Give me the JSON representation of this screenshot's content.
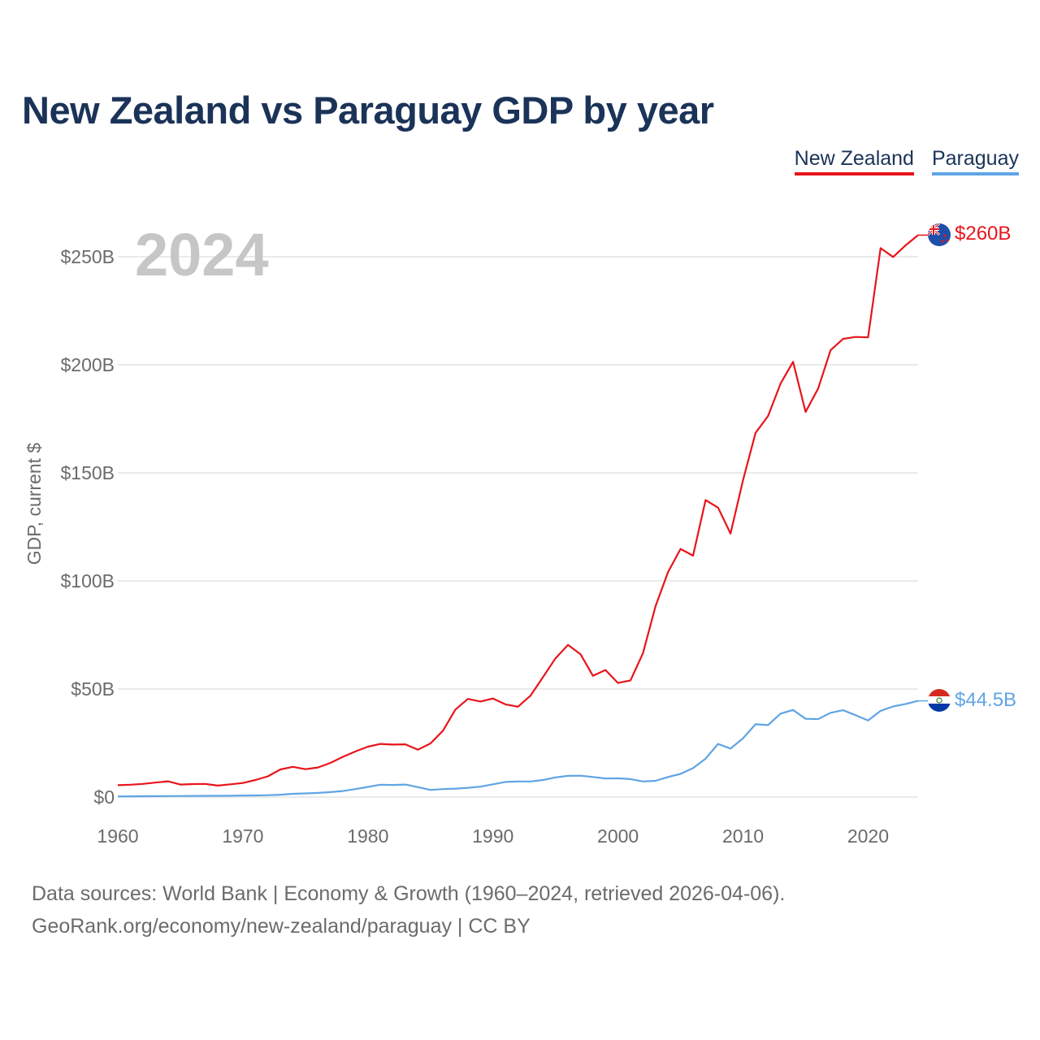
{
  "header": {
    "title": "New Zealand vs Paraguay GDP by year"
  },
  "legend": [
    {
      "label": "New Zealand",
      "color": "#e8141b"
    },
    {
      "label": "Paraguay",
      "color": "#5fa5e4"
    }
  ],
  "footer": {
    "line1": "Data sources: World Bank | Economy & Growth (1960–2024, retrieved 2026-04-06).",
    "line2": "GeoRank.org/economy/new-zealand/paraguay | CC BY"
  },
  "chart_data": {
    "type": "line",
    "title": "New Zealand vs Paraguay GDP by year",
    "year_label": "2024",
    "ylabel": "GDP, current $",
    "xlabel": "",
    "xlim": [
      1960,
      2024
    ],
    "ylim": [
      0,
      260
    ],
    "x_ticks": [
      1960,
      1970,
      1980,
      1990,
      2000,
      2010,
      2020
    ],
    "x_tick_labels": [
      "1960",
      "1970",
      "1980",
      "1990",
      "2000",
      "2010",
      "2020"
    ],
    "y_ticks": [
      0,
      50,
      100,
      150,
      200,
      250
    ],
    "y_tick_labels": [
      "$0",
      "$50B",
      "$100B",
      "$150B",
      "$200B",
      "$250B"
    ],
    "grid": true,
    "x": [
      1960,
      1961,
      1962,
      1963,
      1964,
      1965,
      1966,
      1967,
      1968,
      1969,
      1970,
      1971,
      1972,
      1973,
      1974,
      1975,
      1976,
      1977,
      1978,
      1979,
      1980,
      1981,
      1982,
      1983,
      1984,
      1985,
      1986,
      1987,
      1988,
      1989,
      1990,
      1991,
      1992,
      1993,
      1994,
      1995,
      1996,
      1997,
      1998,
      1999,
      2000,
      2001,
      2002,
      2003,
      2004,
      2005,
      2006,
      2007,
      2008,
      2009,
      2010,
      2011,
      2012,
      2013,
      2014,
      2015,
      2016,
      2017,
      2018,
      2019,
      2020,
      2021,
      2022,
      2023,
      2024
    ],
    "series": [
      {
        "name": "New Zealand",
        "color": "#e8141b",
        "end_label": "$260B",
        "values": [
          5.5,
          5.7,
          6.1,
          6.7,
          7.3,
          5.8,
          6.0,
          6.1,
          5.3,
          5.9,
          6.5,
          7.9,
          9.6,
          12.8,
          14.0,
          12.9,
          13.7,
          15.8,
          18.6,
          21.1,
          23.3,
          24.6,
          24.3,
          24.4,
          21.9,
          24.8,
          30.7,
          40.5,
          45.4,
          44.2,
          45.6,
          42.9,
          41.8,
          46.9,
          55.5,
          64.2,
          70.4,
          66.1,
          56.1,
          58.8,
          52.8,
          54.0,
          66.6,
          88.3,
          104.1,
          114.8,
          111.7,
          137.4,
          133.9,
          121.9,
          146.6,
          168.5,
          176.3,
          191.3,
          201.4,
          178.2,
          189.0,
          206.8,
          212.0,
          212.9,
          212.7,
          254.0,
          249.9,
          255.3,
          260.0
        ]
      },
      {
        "name": "Paraguay",
        "color": "#5fa5e4",
        "end_label": "$44.5B",
        "values": [
          0.3,
          0.35,
          0.39,
          0.41,
          0.44,
          0.48,
          0.51,
          0.55,
          0.58,
          0.62,
          0.7,
          0.75,
          0.87,
          1.1,
          1.5,
          1.7,
          1.9,
          2.3,
          2.8,
          3.7,
          4.7,
          5.7,
          5.6,
          5.8,
          4.6,
          3.3,
          3.7,
          3.9,
          4.3,
          4.8,
          5.9,
          7.0,
          7.2,
          7.2,
          7.9,
          9.1,
          9.8,
          9.9,
          9.3,
          8.6,
          8.7,
          8.3,
          7.2,
          7.5,
          9.3,
          10.7,
          13.4,
          17.8,
          24.6,
          22.4,
          27.2,
          33.7,
          33.3,
          38.6,
          40.3,
          36.2,
          36.1,
          39.0,
          40.2,
          37.9,
          35.4,
          39.9,
          41.9,
          43.1,
          44.5
        ]
      }
    ]
  }
}
